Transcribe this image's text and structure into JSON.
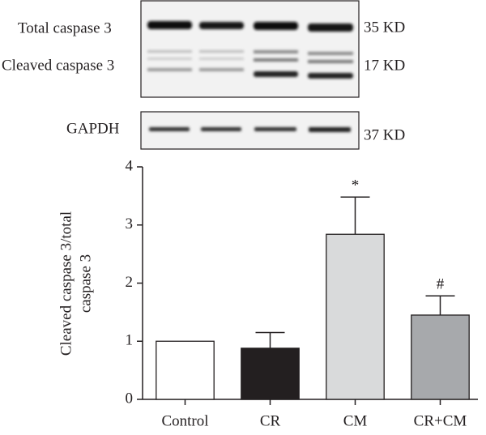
{
  "chart_data": {
    "type": "bar",
    "blot": {
      "rows": [
        "Total caspase 3",
        "Cleaved caspase 3",
        "GAPDH"
      ],
      "sizes": [
        "35 KD",
        "17 KD",
        "37 KD"
      ]
    },
    "ylabel": [
      "Cleaved caspase 3/total",
      "caspase 3"
    ],
    "categories": [
      "Control",
      "CR",
      "CM",
      "CR+CM"
    ],
    "values": [
      1.0,
      0.88,
      2.84,
      1.45
    ],
    "errors": [
      null,
      0.27,
      0.64,
      0.33
    ],
    "colors": [
      "#ffffff",
      "#231f20",
      "#d9dadb",
      "#a7a9ac"
    ],
    "annotations": [
      {
        "text": "*",
        "category": "CM"
      },
      {
        "text": "#",
        "category": "CR+CM"
      }
    ],
    "ylim": [
      0,
      4
    ],
    "yticks": [
      0,
      1,
      2,
      3,
      4
    ]
  }
}
